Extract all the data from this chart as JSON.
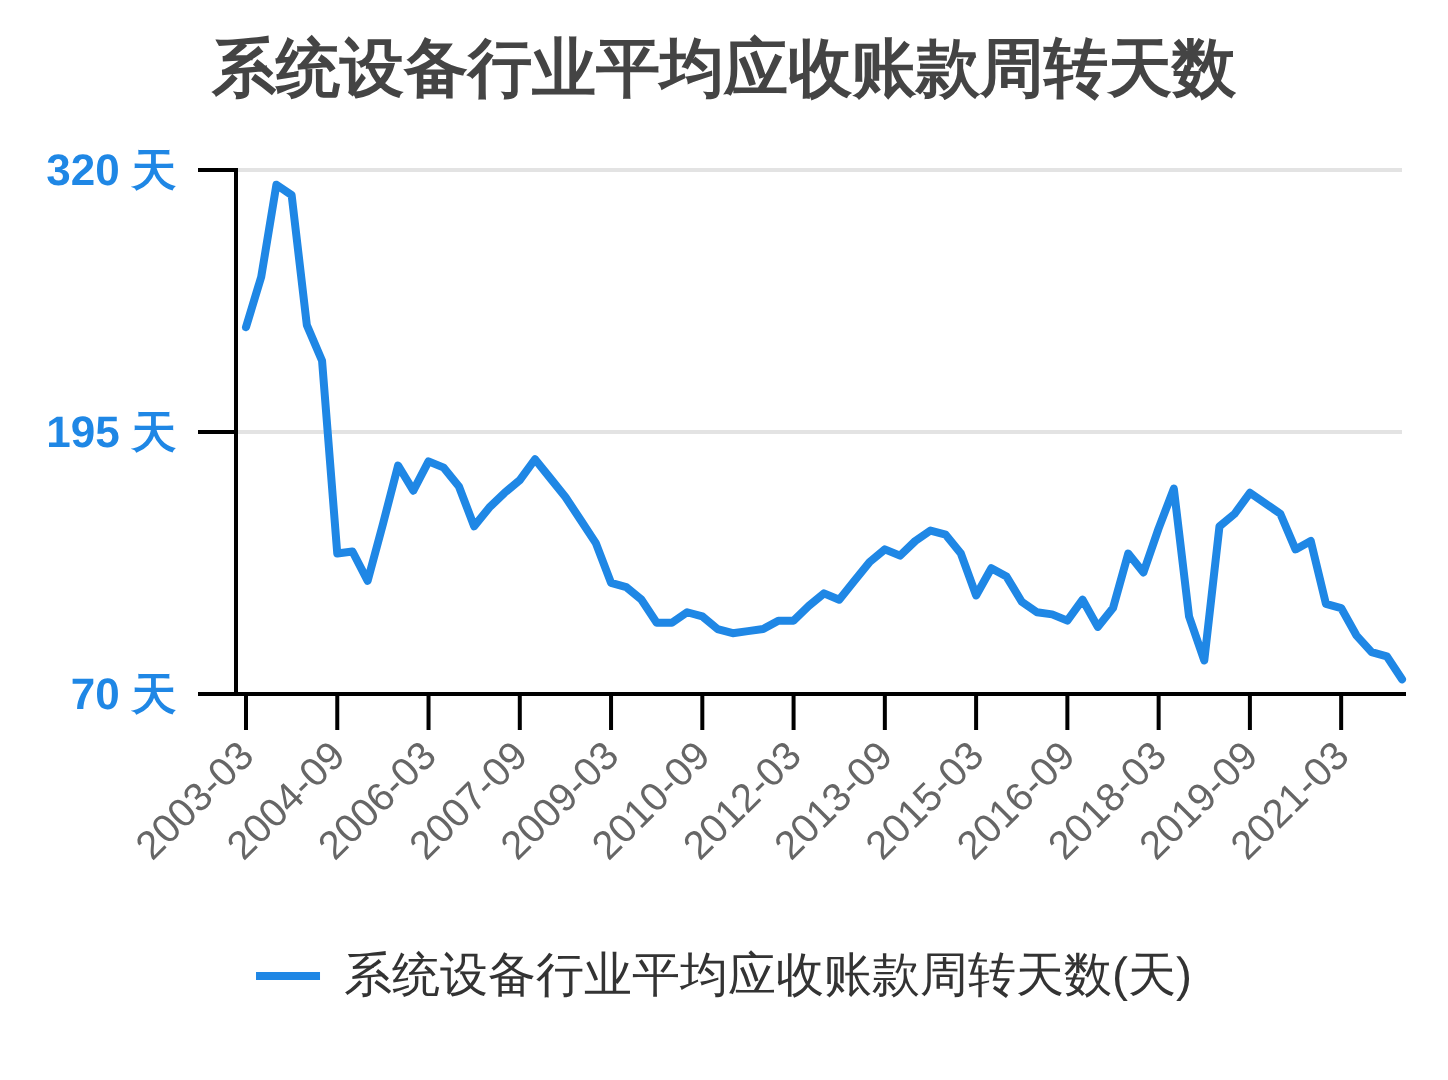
{
  "chart_data": {
    "type": "line",
    "title": "系统设备行业平均应收账款周转天数",
    "categories": [
      "2003-03",
      null,
      null,
      null,
      null,
      null,
      "2004-09",
      null,
      null,
      null,
      null,
      null,
      "2006-03",
      null,
      null,
      null,
      null,
      null,
      "2007-09",
      null,
      null,
      null,
      null,
      null,
      "2009-03",
      null,
      null,
      null,
      null,
      null,
      "2010-09",
      null,
      null,
      null,
      null,
      null,
      "2012-03",
      null,
      null,
      null,
      null,
      null,
      "2013-09",
      null,
      null,
      null,
      null,
      null,
      "2015-03",
      null,
      null,
      null,
      null,
      null,
      "2016-09",
      null,
      null,
      null,
      null,
      null,
      "2018-03",
      null,
      null,
      null,
      null,
      null,
      "2019-09",
      null,
      null,
      null,
      null,
      null,
      "2021-03",
      null,
      null,
      null,
      null
    ],
    "series": [
      {
        "name": "系统设备行业平均应收账款周转天数(天)",
        "color": "#1f87e5",
        "values": [
          245,
          269,
          313,
          308,
          246,
          229,
          137,
          138,
          124,
          151,
          179,
          167,
          181,
          178,
          169,
          150,
          159,
          166,
          172,
          182,
          173,
          164,
          153,
          142,
          123,
          121,
          115,
          104,
          104,
          109,
          107,
          101,
          99,
          100,
          101,
          105,
          105,
          112,
          118,
          115,
          124,
          133,
          139,
          136,
          143,
          148,
          146,
          137,
          117,
          130,
          126,
          114,
          109,
          108,
          105,
          115,
          102,
          111,
          137,
          128,
          149,
          168,
          107,
          86,
          150,
          156,
          166,
          161,
          156,
          139,
          143,
          113,
          111,
          98,
          90,
          88,
          77
        ]
      }
    ],
    "ylim": [
      70,
      320
    ],
    "yticks": [
      {
        "value": 70,
        "label": "70 天"
      },
      {
        "value": 195,
        "label": "195 天"
      },
      {
        "value": 320,
        "label": "320 天"
      }
    ],
    "grid": "y",
    "legend": "bottom"
  }
}
